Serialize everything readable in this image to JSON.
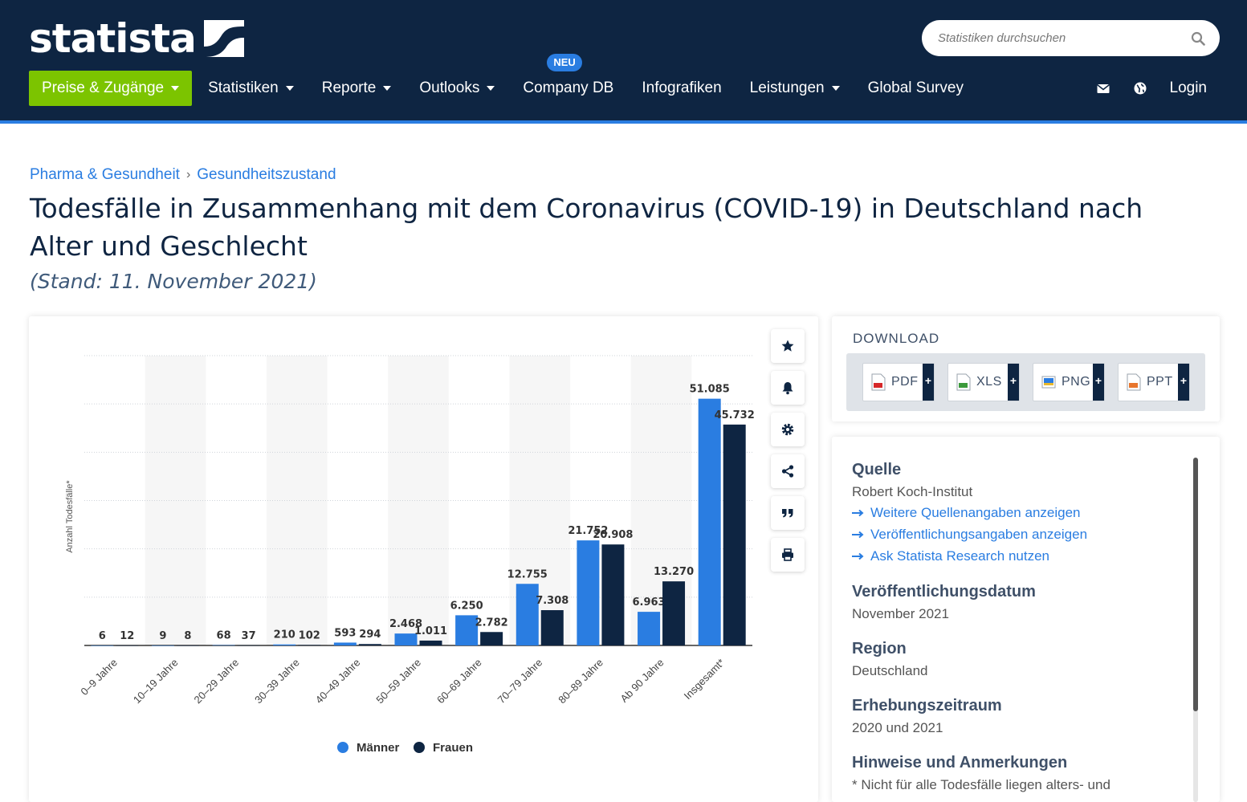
{
  "brand": {
    "logo_text": "statista"
  },
  "search": {
    "placeholder": "Statistiken durchsuchen"
  },
  "nav": {
    "primary": "Preise & Zugänge",
    "items": [
      {
        "label": "Statistiken",
        "dropdown": true
      },
      {
        "label": "Reporte",
        "dropdown": true
      },
      {
        "label": "Outlooks",
        "dropdown": true
      },
      {
        "label": "Company DB",
        "dropdown": false,
        "badge": "NEU"
      },
      {
        "label": "Infografiken",
        "dropdown": false
      },
      {
        "label": "Leistungen",
        "dropdown": true
      },
      {
        "label": "Global Survey",
        "dropdown": false
      }
    ],
    "login": "Login"
  },
  "breadcrumb": {
    "items": [
      "Pharma & Gesundheit",
      "Gesundheitszustand"
    ],
    "separator": "›"
  },
  "page": {
    "title": "Todesfälle in Zusammenhang mit dem Coronavirus (COVID-19) in Deutschland nach Alter und Geschlecht",
    "subtitle": "(Stand: 11. November 2021)"
  },
  "chart_data": {
    "type": "bar",
    "ylabel": "Anzahl Todesfälle*",
    "xlabel": "",
    "ylim": [
      0,
      60000
    ],
    "grid": true,
    "legend_position": "bottom",
    "categories": [
      "0–9 Jahre",
      "10–19 Jahre",
      "20–29 Jahre",
      "30–39 Jahre",
      "40–49 Jahre",
      "50–59 Jahre",
      "60–69 Jahre",
      "70–79 Jahre",
      "80–89 Jahre",
      "Ab 90 Jahre",
      "Insgesamt*"
    ],
    "series": [
      {
        "name": "Männer",
        "color": "#2a7de1",
        "values": [
          6,
          9,
          68,
          210,
          593,
          2468,
          6250,
          12755,
          21752,
          6963,
          51085
        ],
        "labels": [
          "6",
          "9",
          "68",
          "210",
          "593",
          "2.468",
          "6.250",
          "12.755",
          "21.752",
          "6.963",
          "51.085"
        ]
      },
      {
        "name": "Frauen",
        "color": "#0e2542",
        "values": [
          12,
          8,
          37,
          102,
          294,
          1011,
          2782,
          7308,
          20908,
          13270,
          45732
        ],
        "labels": [
          "12",
          "8",
          "37",
          "102",
          "294",
          "1.011",
          "2.782",
          "7.308",
          "20.908",
          "13.270",
          "45.732"
        ]
      }
    ]
  },
  "chart_tools": [
    {
      "name": "star-icon"
    },
    {
      "name": "bell-icon"
    },
    {
      "name": "gear-icon"
    },
    {
      "name": "share-icon"
    },
    {
      "name": "quote-icon"
    },
    {
      "name": "print-icon"
    }
  ],
  "download": {
    "title": "DOWNLOAD",
    "formats": [
      {
        "label": "PDF",
        "color": "#d6282a"
      },
      {
        "label": "XLS",
        "color": "#3b9a3b"
      },
      {
        "label": "PNG",
        "color": "#2a7de1"
      },
      {
        "label": "PPT",
        "color": "#e8762d"
      }
    ],
    "plus": "+"
  },
  "info": {
    "source_h": "Quelle",
    "source_v": "Robert Koch-Institut",
    "links": [
      "Weitere Quellenangaben anzeigen",
      "Veröffentlichungsangaben anzeigen",
      "Ask Statista Research nutzen"
    ],
    "pubdate_h": "Veröffentlichungsdatum",
    "pubdate_v": "November 2021",
    "region_h": "Region",
    "region_v": "Deutschland",
    "period_h": "Erhebungszeitraum",
    "period_v": "2020 und 2021",
    "notes_h": "Hinweise und Anmerkungen",
    "notes_v": "* Nicht für alle Todesfälle liegen alters- und"
  }
}
